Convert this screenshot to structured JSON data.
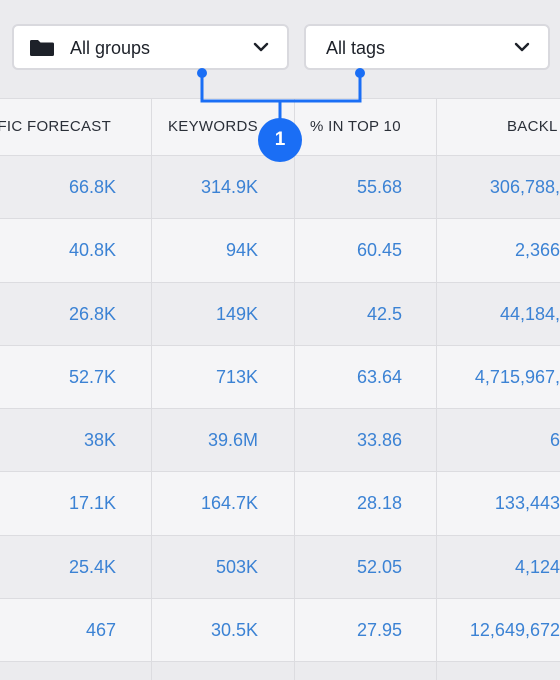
{
  "filters": {
    "groups_label": "All groups",
    "tags_label": "All tags"
  },
  "badge": "1",
  "columns": {
    "traffic": "FFIC FORECAST",
    "keywords": "KEYWORDS",
    "top10": "% IN TOP 10",
    "backlinks": "BACKL"
  },
  "rows": [
    {
      "traffic": "66.8K",
      "keywords": "314.9K",
      "top10": "55.68",
      "backlinks": "306,788,"
    },
    {
      "traffic": "40.8K",
      "keywords": "94K",
      "top10": "60.45",
      "backlinks": "2,366"
    },
    {
      "traffic": "26.8K",
      "keywords": "149K",
      "top10": "42.5",
      "backlinks": "44,184,"
    },
    {
      "traffic": "52.7K",
      "keywords": "713K",
      "top10": "63.64",
      "backlinks": "4,715,967,"
    },
    {
      "traffic": "38K",
      "keywords": "39.6M",
      "top10": "33.86",
      "backlinks": "6"
    },
    {
      "traffic": "17.1K",
      "keywords": "164.7K",
      "top10": "28.18",
      "backlinks": "133,443"
    },
    {
      "traffic": "25.4K",
      "keywords": "503K",
      "top10": "52.05",
      "backlinks": "4,124"
    },
    {
      "traffic": "467",
      "keywords": "30.5K",
      "top10": "27.95",
      "backlinks": "12,649,672"
    }
  ],
  "colors": {
    "accent": "#1a6ef5",
    "link": "#3b82d4"
  }
}
